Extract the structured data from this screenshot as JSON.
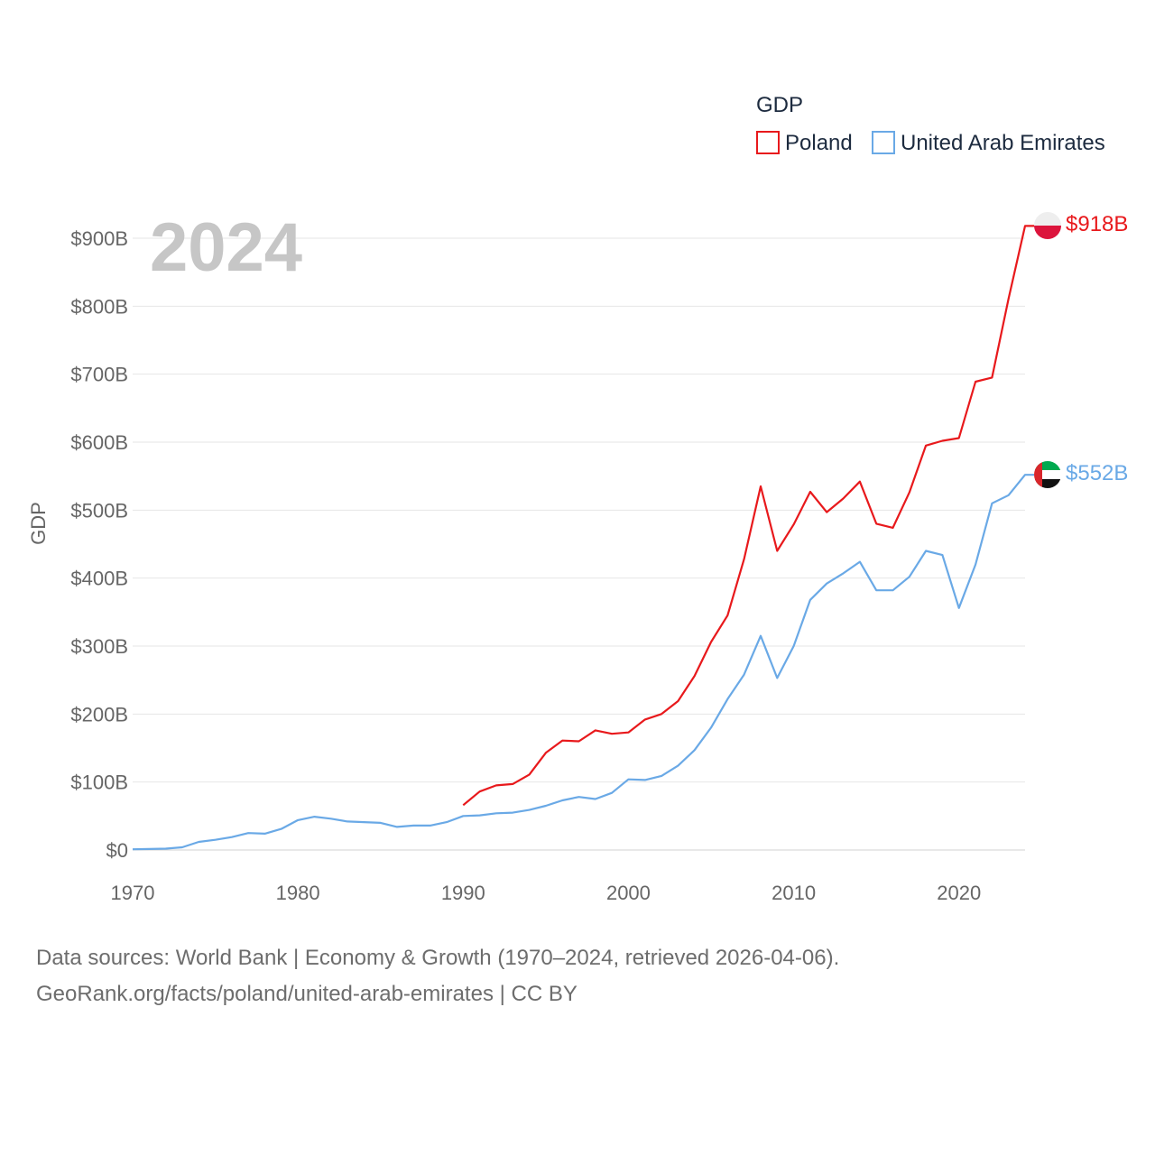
{
  "chart_data": {
    "type": "line",
    "title": "2024",
    "legend_title": "GDP",
    "ylabel": "GDP",
    "xlabel": "",
    "xlim": [
      1970,
      2024
    ],
    "ylim": [
      0,
      900
    ],
    "x_ticks": [
      1970,
      1980,
      1990,
      2000,
      2010,
      2020
    ],
    "y_ticks": [
      {
        "value": 0,
        "label": "$0"
      },
      {
        "value": 100,
        "label": "$100B"
      },
      {
        "value": 200,
        "label": "$200B"
      },
      {
        "value": 300,
        "label": "$300B"
      },
      {
        "value": 400,
        "label": "$400B"
      },
      {
        "value": 500,
        "label": "$500B"
      },
      {
        "value": 600,
        "label": "$600B"
      },
      {
        "value": 700,
        "label": "$700B"
      },
      {
        "value": 800,
        "label": "$800B"
      },
      {
        "value": 900,
        "label": "$900B"
      }
    ],
    "grid": true,
    "legend_position": "top-right",
    "series": [
      {
        "name": "Poland",
        "color": "#e8191c",
        "end_label": "$918B",
        "flag": "poland-flag",
        "x": [
          1990,
          1991,
          1992,
          1993,
          1994,
          1995,
          1996,
          1997,
          1998,
          1999,
          2000,
          2001,
          2002,
          2003,
          2004,
          2005,
          2006,
          2007,
          2008,
          2009,
          2010,
          2011,
          2012,
          2013,
          2014,
          2015,
          2016,
          2017,
          2018,
          2019,
          2020,
          2021,
          2022,
          2023,
          2024
        ],
        "values": [
          66,
          86,
          95,
          97,
          111,
          143,
          161,
          160,
          176,
          171,
          173,
          192,
          200,
          219,
          256,
          306,
          345,
          428,
          535,
          440,
          479,
          527,
          497,
          517,
          542,
          480,
          474,
          526,
          595,
          602,
          606,
          689,
          695,
          811,
          918
        ]
      },
      {
        "name": "United Arab Emirates",
        "color": "#6aa9e6",
        "end_label": "$552B",
        "flag": "uae-flag",
        "x": [
          1970,
          1971,
          1972,
          1973,
          1974,
          1975,
          1976,
          1977,
          1978,
          1979,
          1980,
          1981,
          1982,
          1983,
          1984,
          1985,
          1986,
          1987,
          1988,
          1989,
          1990,
          1991,
          1992,
          1993,
          1994,
          1995,
          1996,
          1997,
          1998,
          1999,
          2000,
          2001,
          2002,
          2003,
          2004,
          2005,
          2006,
          2007,
          2008,
          2009,
          2010,
          2011,
          2012,
          2013,
          2014,
          2015,
          2016,
          2017,
          2018,
          2019,
          2020,
          2021,
          2022,
          2023,
          2024
        ],
        "values": [
          1,
          1.5,
          2,
          4,
          12,
          15,
          19,
          25,
          24,
          31,
          44,
          49,
          46,
          42,
          41,
          40,
          34,
          36,
          36,
          41,
          50,
          51,
          54,
          55,
          59,
          65,
          73,
          78,
          75,
          84,
          104,
          103,
          109,
          124,
          147,
          180,
          222,
          258,
          315,
          253,
          300,
          368,
          392,
          407,
          424,
          382,
          382,
          402,
          440,
          434,
          356,
          420,
          510,
          522,
          552
        ]
      }
    ]
  },
  "footer": {
    "line1": "Data sources: World Bank | Economy & Growth (1970–2024, retrieved 2026-04-06).",
    "line2": "GeoRank.org/facts/poland/united-arab-emirates | CC BY"
  }
}
